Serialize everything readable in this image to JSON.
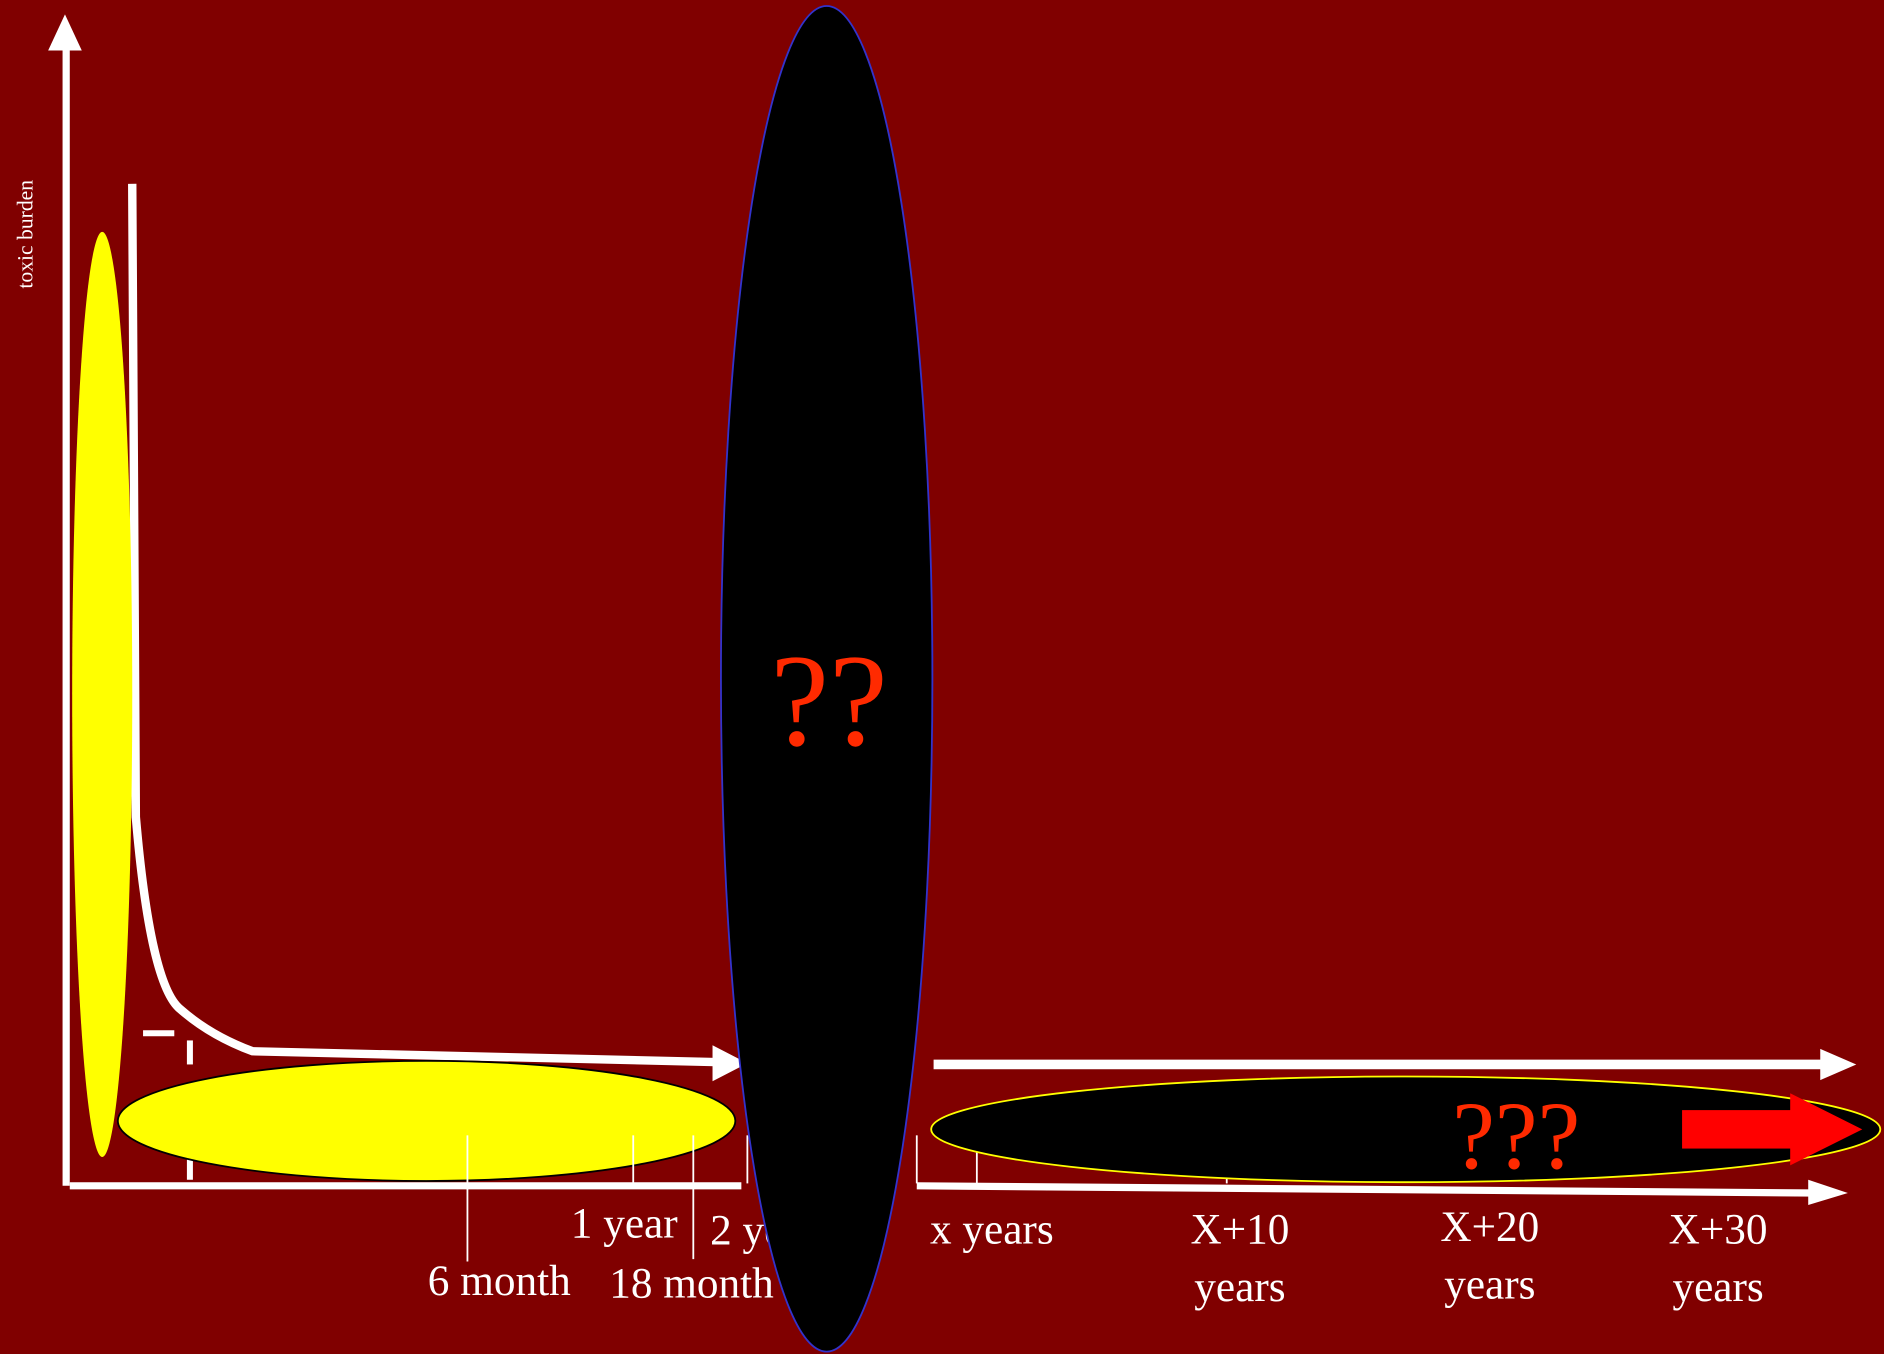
{
  "y_axis_label": "toxic burden",
  "time_labels": {
    "one_year": "1 year",
    "two_years": "2 years",
    "six_month": "6 month",
    "eighteen_month": "18 month",
    "x_years": "x years",
    "x10": [
      "X+10",
      "years"
    ],
    "x20": [
      "X+20",
      "years"
    ],
    "x30": [
      "X+30",
      "years"
    ]
  },
  "unknown_mid": "??",
  "unknown_late": "???"
}
